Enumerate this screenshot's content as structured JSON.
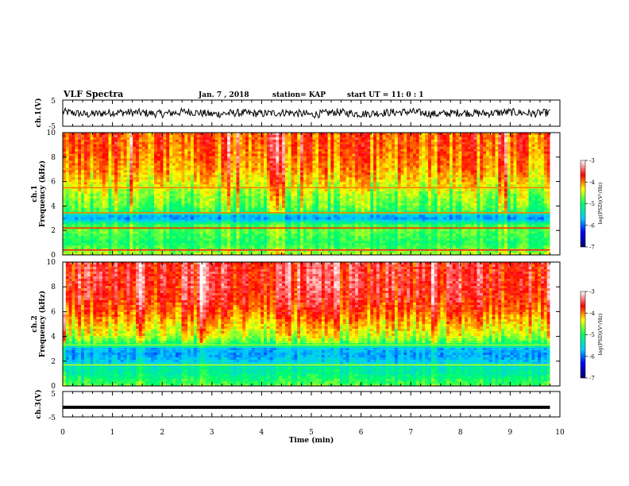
{
  "header": {
    "title": "VLF Spectra",
    "date": "Jan. 7 , 2018",
    "station": "station= KAP",
    "start_ut": "start  UT =  11: 0  : 1"
  },
  "chart_data": [
    {
      "type": "line",
      "panel": "ch1-waveform",
      "ylabel": "ch.1(V)",
      "ylim": [
        -5,
        5
      ],
      "yticks": [
        "5",
        "-5"
      ],
      "xlim": [
        0,
        10
      ],
      "series": [
        {
          "x": [
            0,
            0.5,
            1,
            1.5,
            2,
            2.5,
            3,
            3.5,
            4,
            4.5,
            5,
            5.5,
            6,
            6.5,
            7,
            7.5,
            8,
            8.5,
            9,
            9.5,
            9.8
          ],
          "values": [
            0.5,
            -0.5,
            0.3,
            0.2,
            -0.3,
            0.6,
            -0.4,
            0.1,
            -0.2,
            0.3,
            -0.6,
            0.4,
            -0.3,
            0.2,
            0.5,
            -0.4,
            0.2,
            -0.1,
            0.4,
            -0.2,
            0.3
          ]
        }
      ]
    },
    {
      "type": "heatmap",
      "panel": "ch1-spectrogram",
      "ylabel": "ch.1 Frequency (kHz)",
      "ylim": [
        0,
        10
      ],
      "yticks": [
        "0",
        "2",
        "4",
        "6",
        "8",
        "10"
      ],
      "xlim": [
        0,
        9.8
      ],
      "profile_note": "approximate log(PSD) vs frequency, kHz",
      "freq": [
        0,
        0.5,
        1,
        1.5,
        2,
        2.5,
        2.9,
        3.2,
        3.5,
        4,
        5,
        6,
        7,
        8,
        9,
        10
      ],
      "log_psd": [
        -4.5,
        -4.8,
        -5.0,
        -4.9,
        -4.8,
        -4.9,
        -5.8,
        -5.7,
        -5.0,
        -4.8,
        -4.6,
        -4.3,
        -4.1,
        -4.0,
        -3.9,
        -3.9
      ],
      "lines": [
        {
          "freq": 0.4,
          "value": -3.6
        },
        {
          "freq": 2.2,
          "value": -3.8
        },
        {
          "freq": 3.45,
          "value": -4.0
        },
        {
          "freq": 5.5,
          "value": -4.0
        }
      ]
    },
    {
      "type": "heatmap",
      "panel": "ch2-spectrogram",
      "ylabel": "ch.2 Frequency (kHz)",
      "ylim": [
        0,
        10
      ],
      "yticks": [
        "0",
        "2",
        "4",
        "6",
        "8",
        "10"
      ],
      "xlim": [
        0,
        9.8
      ],
      "freq": [
        0,
        0.5,
        1,
        1.5,
        2,
        2.5,
        3,
        3.3,
        3.6,
        4,
        5,
        6,
        7,
        8,
        9,
        10
      ],
      "log_psd": [
        -4.8,
        -5.0,
        -5.2,
        -5.3,
        -5.6,
        -5.8,
        -5.7,
        -5.0,
        -4.8,
        -4.5,
        -4.2,
        -3.9,
        -3.7,
        -3.6,
        -3.6,
        -3.6
      ],
      "lines": [
        {
          "freq": 1.7,
          "value": -4.5
        },
        {
          "freq": 3.3,
          "value": -4.6
        }
      ]
    },
    {
      "type": "line",
      "panel": "ch3-waveform",
      "ylabel": "ch.3(V)",
      "ylim": [
        -5,
        5
      ],
      "yticks": [
        "5",
        "-5"
      ],
      "xlim": [
        0,
        10
      ],
      "series": [
        {
          "x": [
            0,
            9.8
          ],
          "values": [
            -1.2,
            -1.2
          ]
        }
      ]
    }
  ],
  "x_axis": {
    "label": "Time  (min)",
    "ticks": [
      "0",
      "1",
      "2",
      "3",
      "4",
      "5",
      "6",
      "7",
      "8",
      "9",
      "10"
    ],
    "xlim": [
      0,
      10
    ]
  },
  "colorbars": [
    {
      "label": "log(PSD)(V²/Hz)",
      "ticks": [
        "-3",
        "-4",
        "-5",
        "-6",
        "-7"
      ],
      "range": [
        -7,
        -3
      ]
    },
    {
      "label": "log(PSD)(V²/Hz)",
      "ticks": [
        "-3",
        "-4",
        "-5",
        "-6",
        "-7"
      ],
      "range": [
        -7,
        -3
      ]
    }
  ],
  "colors": {
    "cmap": [
      "#000066",
      "#0000ff",
      "#00ccff",
      "#00ff66",
      "#ffff00",
      "#ff0000",
      "#ffffff"
    ]
  }
}
